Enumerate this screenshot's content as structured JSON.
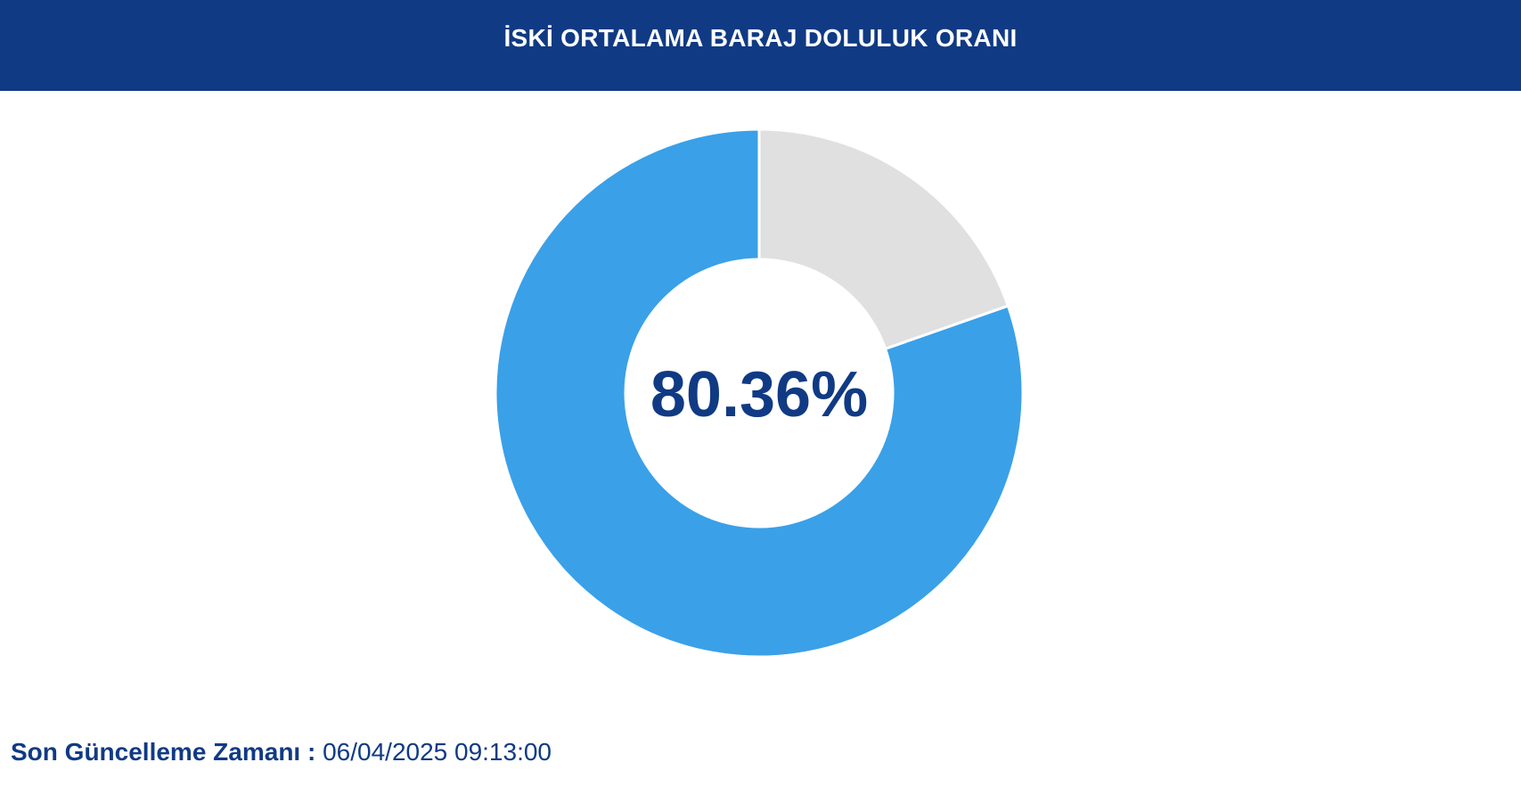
{
  "header": {
    "title": "İSKİ ORTALAMA BARAJ DOLULUK ORANI"
  },
  "chart_data": {
    "type": "pie",
    "donut": true,
    "slices": [
      {
        "value": 80.36,
        "color": "#3aa0e8"
      },
      {
        "value": 19.64,
        "color": "#e0e0e0"
      }
    ],
    "center_label": "80.36%"
  },
  "footer": {
    "label": "Son Güncelleme Zamanı :",
    "value": "06/04/2025 09:13:00"
  },
  "colors": {
    "header_bg": "#103a84",
    "text": "#103a84"
  }
}
